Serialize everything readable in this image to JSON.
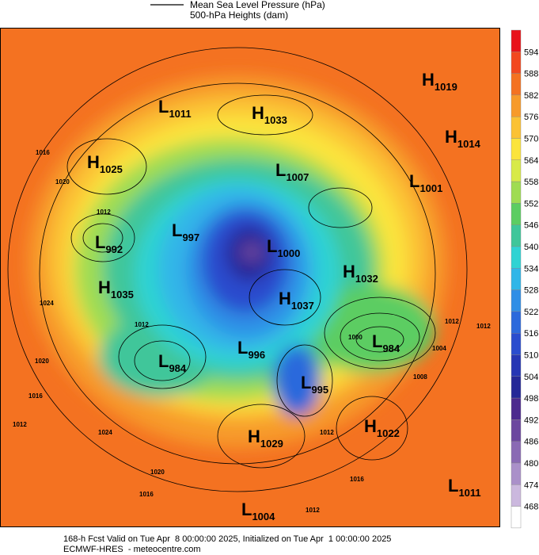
{
  "header": {
    "legend": [
      "Mean Sea Level Pressure (hPa)",
      "500-hPa Heights (dam)"
    ]
  },
  "colorbar": {
    "ticks": [
      594,
      588,
      582,
      576,
      570,
      564,
      558,
      552,
      546,
      540,
      534,
      528,
      522,
      516,
      510,
      504,
      498,
      492,
      486,
      480,
      474,
      468
    ],
    "colors": [
      "#e8131a",
      "#f2481f",
      "#f47221",
      "#f79a2a",
      "#fbc234",
      "#fbe43c",
      "#d8ea48",
      "#9fdc52",
      "#5ccd62",
      "#3fc69a",
      "#2fd3d3",
      "#30b6e8",
      "#2f8ee6",
      "#2c69dc",
      "#2a4cce",
      "#2636b4",
      "#252897",
      "#4c2a8e",
      "#6c479f",
      "#8a6ab4",
      "#aa90c9",
      "#cbb8de",
      "#ffffff"
    ]
  },
  "centers": [
    {
      "kind": "H",
      "value": 1019
    },
    {
      "kind": "H",
      "value": 1014
    },
    {
      "kind": "L",
      "value": 1011
    },
    {
      "kind": "H",
      "value": 1033
    },
    {
      "kind": "H",
      "value": 1025
    },
    {
      "kind": "L",
      "value": 1007
    },
    {
      "kind": "L",
      "value": 1001
    },
    {
      "kind": "L",
      "value": 997
    },
    {
      "kind": "L",
      "value": 992
    },
    {
      "kind": "L",
      "value": 1000
    },
    {
      "kind": "H",
      "value": 1032
    },
    {
      "kind": "H",
      "value": 1035
    },
    {
      "kind": "H",
      "value": 1037
    },
    {
      "kind": "L",
      "value": 984
    },
    {
      "kind": "L",
      "value": 996
    },
    {
      "kind": "L",
      "value": 984
    },
    {
      "kind": "L",
      "value": 995
    },
    {
      "kind": "H",
      "value": 1029
    },
    {
      "kind": "H",
      "value": 1022
    },
    {
      "kind": "L",
      "value": 1011
    },
    {
      "kind": "L",
      "value": 1004
    }
  ],
  "isobar_labels": [
    1016,
    1020,
    1012,
    1024,
    1020,
    1016,
    1012,
    1024,
    1020,
    1016,
    1012,
    1016,
    1012,
    1008,
    1004,
    1012,
    1012,
    1000,
    1012
  ],
  "footer": {
    "line1": "168-h Fcst Valid on Tue Apr  8 00:00:00 2025, Initialized on Tue Apr  1 00:00:00 2025",
    "line2": "ECMWF-HRES  - meteocentre.com"
  }
}
